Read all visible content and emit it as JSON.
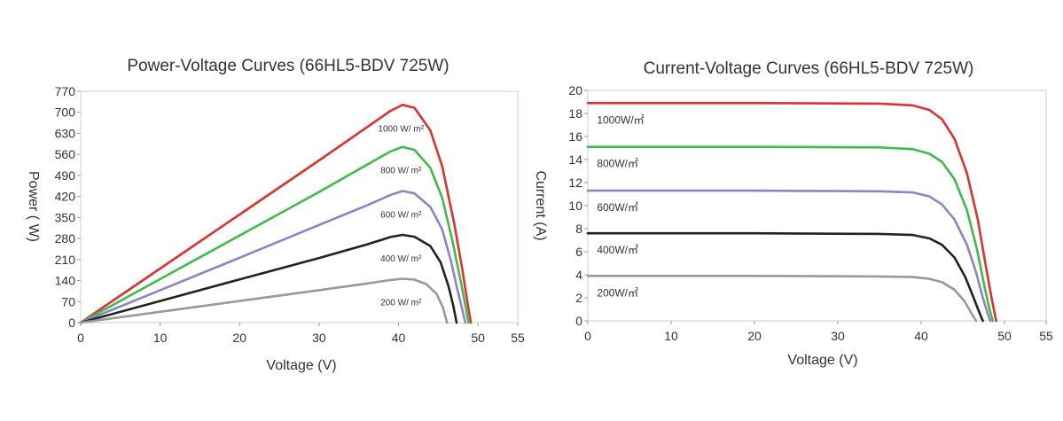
{
  "chart_data": [
    {
      "type": "line",
      "title": "Power-Voltage Curves (66HL5-BDV 725W)",
      "xlabel": "Voltage (V)",
      "ylabel": "Power ( W)",
      "xlim": [
        0,
        55
      ],
      "ylim": [
        0,
        770
      ],
      "x_ticks": [
        "0",
        "10",
        "20",
        "30",
        "40",
        "50",
        "55"
      ],
      "y_ticks": [
        "0",
        "70",
        "140",
        "210",
        "280",
        "350",
        "420",
        "490",
        "560",
        "630",
        "700",
        "770"
      ],
      "grid": false,
      "series": [
        {
          "name": "1000 W/ m²",
          "color": "#e0312f",
          "x": [
            0,
            10,
            20,
            30,
            36,
            39,
            40.5,
            42,
            44,
            45.5,
            47,
            48,
            48.6,
            49.1
          ],
          "y": [
            0,
            180,
            360,
            540,
            650,
            705,
            725,
            715,
            640,
            520,
            330,
            180,
            80,
            0
          ]
        },
        {
          "name": "800 W/ m²",
          "color": "#3ebc4a",
          "x": [
            0,
            10,
            20,
            30,
            36,
            39,
            40.5,
            42,
            44,
            45.5,
            46.8,
            47.8,
            48.4,
            48.8
          ],
          "y": [
            0,
            145,
            290,
            435,
            525,
            570,
            585,
            575,
            515,
            415,
            270,
            140,
            60,
            0
          ]
        },
        {
          "name": "600 W/ m²",
          "color": "#8b85c8",
          "x": [
            0,
            10,
            20,
            30,
            36,
            39,
            40.5,
            42,
            44,
            45.5,
            46.6,
            47.4,
            48.0,
            48.4
          ],
          "y": [
            0,
            108,
            216,
            325,
            390,
            425,
            438,
            430,
            385,
            310,
            205,
            110,
            45,
            0
          ]
        },
        {
          "name": "400 W/ m²",
          "color": "#222222",
          "x": [
            0,
            10,
            20,
            30,
            36,
            39,
            40.5,
            42,
            44,
            45.3,
            46.3,
            46.9,
            47.3
          ],
          "y": [
            0,
            72,
            144,
            215,
            260,
            285,
            292,
            286,
            255,
            200,
            120,
            55,
            0
          ]
        },
        {
          "name": "200 W/ m²",
          "color": "#999999",
          "x": [
            0,
            10,
            20,
            30,
            36,
            39,
            40.5,
            42,
            43.5,
            44.8,
            45.6,
            46.1
          ],
          "y": [
            0,
            36,
            72,
            108,
            130,
            142,
            146,
            143,
            128,
            95,
            50,
            0
          ]
        }
      ]
    },
    {
      "type": "line",
      "title": "Current-Voltage Curves (66HL5-BDV 725W)",
      "xlabel": "Voltage (V)",
      "ylabel": "Current (A)",
      "xlim": [
        0,
        55
      ],
      "ylim": [
        0,
        20
      ],
      "x_ticks": [
        "0",
        "10",
        "20",
        "30",
        "40",
        "50",
        "55"
      ],
      "y_ticks": [
        "0",
        "2",
        "4",
        "6",
        "8",
        "10",
        "12",
        "14",
        "16",
        "18",
        "20"
      ],
      "grid": false,
      "series": [
        {
          "name": "1000W/㎡",
          "color": "#e0312f",
          "x": [
            0,
            20,
            35,
            39,
            41,
            42.5,
            44,
            45.5,
            46.8,
            47.8,
            48.5,
            49
          ],
          "y": [
            18.9,
            18.9,
            18.85,
            18.7,
            18.3,
            17.5,
            15.8,
            12.8,
            8.8,
            4.6,
            1.8,
            0
          ]
        },
        {
          "name": "800W/㎡",
          "color": "#3ebc4a",
          "x": [
            0,
            20,
            35,
            39,
            41,
            42.5,
            44,
            45.5,
            46.7,
            47.6,
            48.2,
            48.6
          ],
          "y": [
            15.1,
            15.1,
            15.05,
            14.9,
            14.5,
            13.8,
            12.3,
            9.6,
            6.2,
            3.0,
            1.0,
            0
          ]
        },
        {
          "name": "600W/㎡",
          "color": "#8b85c8",
          "x": [
            0,
            20,
            35,
            39,
            41,
            42.5,
            44,
            45.5,
            46.6,
            47.4,
            48,
            48.3
          ],
          "y": [
            11.3,
            11.3,
            11.25,
            11.15,
            10.8,
            10.1,
            8.8,
            6.6,
            4.2,
            2.0,
            0.6,
            0
          ]
        },
        {
          "name": "400W/㎡",
          "color": "#222222",
          "x": [
            0,
            20,
            35,
            39,
            41,
            42.5,
            44,
            45.3,
            46.3,
            47,
            47.4
          ],
          "y": [
            7.6,
            7.6,
            7.55,
            7.45,
            7.15,
            6.6,
            5.5,
            3.8,
            2.0,
            0.7,
            0
          ]
        },
        {
          "name": "200W/㎡",
          "color": "#999999",
          "x": [
            0,
            20,
            35,
            39,
            41,
            42.5,
            44,
            45.2,
            46,
            46.6
          ],
          "y": [
            3.9,
            3.9,
            3.85,
            3.8,
            3.65,
            3.35,
            2.7,
            1.7,
            0.7,
            0
          ]
        }
      ]
    }
  ]
}
